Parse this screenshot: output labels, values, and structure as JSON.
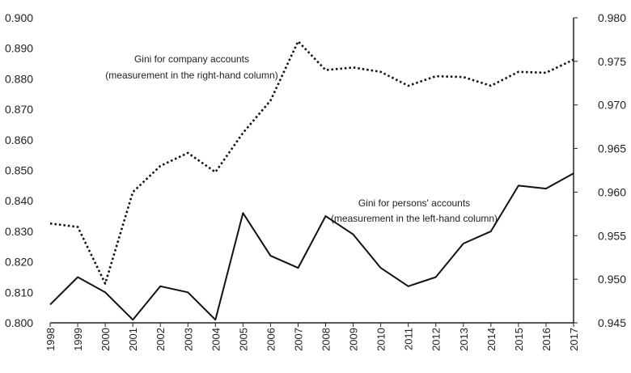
{
  "chart_data": {
    "type": "line",
    "x": [
      "1998",
      "1999",
      "2000",
      "2001",
      "2002",
      "2003",
      "2004",
      "2005",
      "2006",
      "2007",
      "2008",
      "2009",
      "2010",
      "2011",
      "2012",
      "2013",
      "2014",
      "2015",
      "2016",
      "2017"
    ],
    "left_axis": {
      "ylim": [
        0.8,
        0.9
      ],
      "ticks": [
        "0.800",
        "0.810",
        "0.820",
        "0.830",
        "0.840",
        "0.850",
        "0.860",
        "0.870",
        "0.880",
        "0.890",
        "0.900"
      ]
    },
    "right_axis": {
      "ylim": [
        0.945,
        0.98
      ],
      "ticks": [
        "0.945",
        "0.950",
        "0.955",
        "0.960",
        "0.965",
        "0.970",
        "0.975",
        "0.980"
      ]
    },
    "series": [
      {
        "axis": "right",
        "style": "dotted",
        "values": [
          0.9564,
          0.956,
          0.9495,
          0.96,
          0.963,
          0.9645,
          0.9623,
          0.9668,
          0.9705,
          0.9773,
          0.974,
          0.9743,
          0.9738,
          0.9722,
          0.9733,
          0.9732,
          0.9722,
          0.9738,
          0.9737,
          0.9752
        ]
      },
      {
        "axis": "left",
        "style": "solid",
        "values": [
          0.806,
          0.815,
          0.81,
          0.801,
          0.812,
          0.81,
          0.801,
          0.836,
          0.822,
          0.818,
          0.835,
          0.829,
          0.818,
          0.812,
          0.815,
          0.826,
          0.83,
          0.845,
          0.844,
          0.849
        ]
      }
    ],
    "annotations": [
      {
        "id": "company",
        "lines": [
          "Gini for company accounts",
          "(measurement in the right-hand column)"
        ]
      },
      {
        "id": "persons",
        "lines": [
          "Gini for persons' accounts",
          "(measurement in the left-hand column)"
        ]
      }
    ],
    "grid": false
  }
}
